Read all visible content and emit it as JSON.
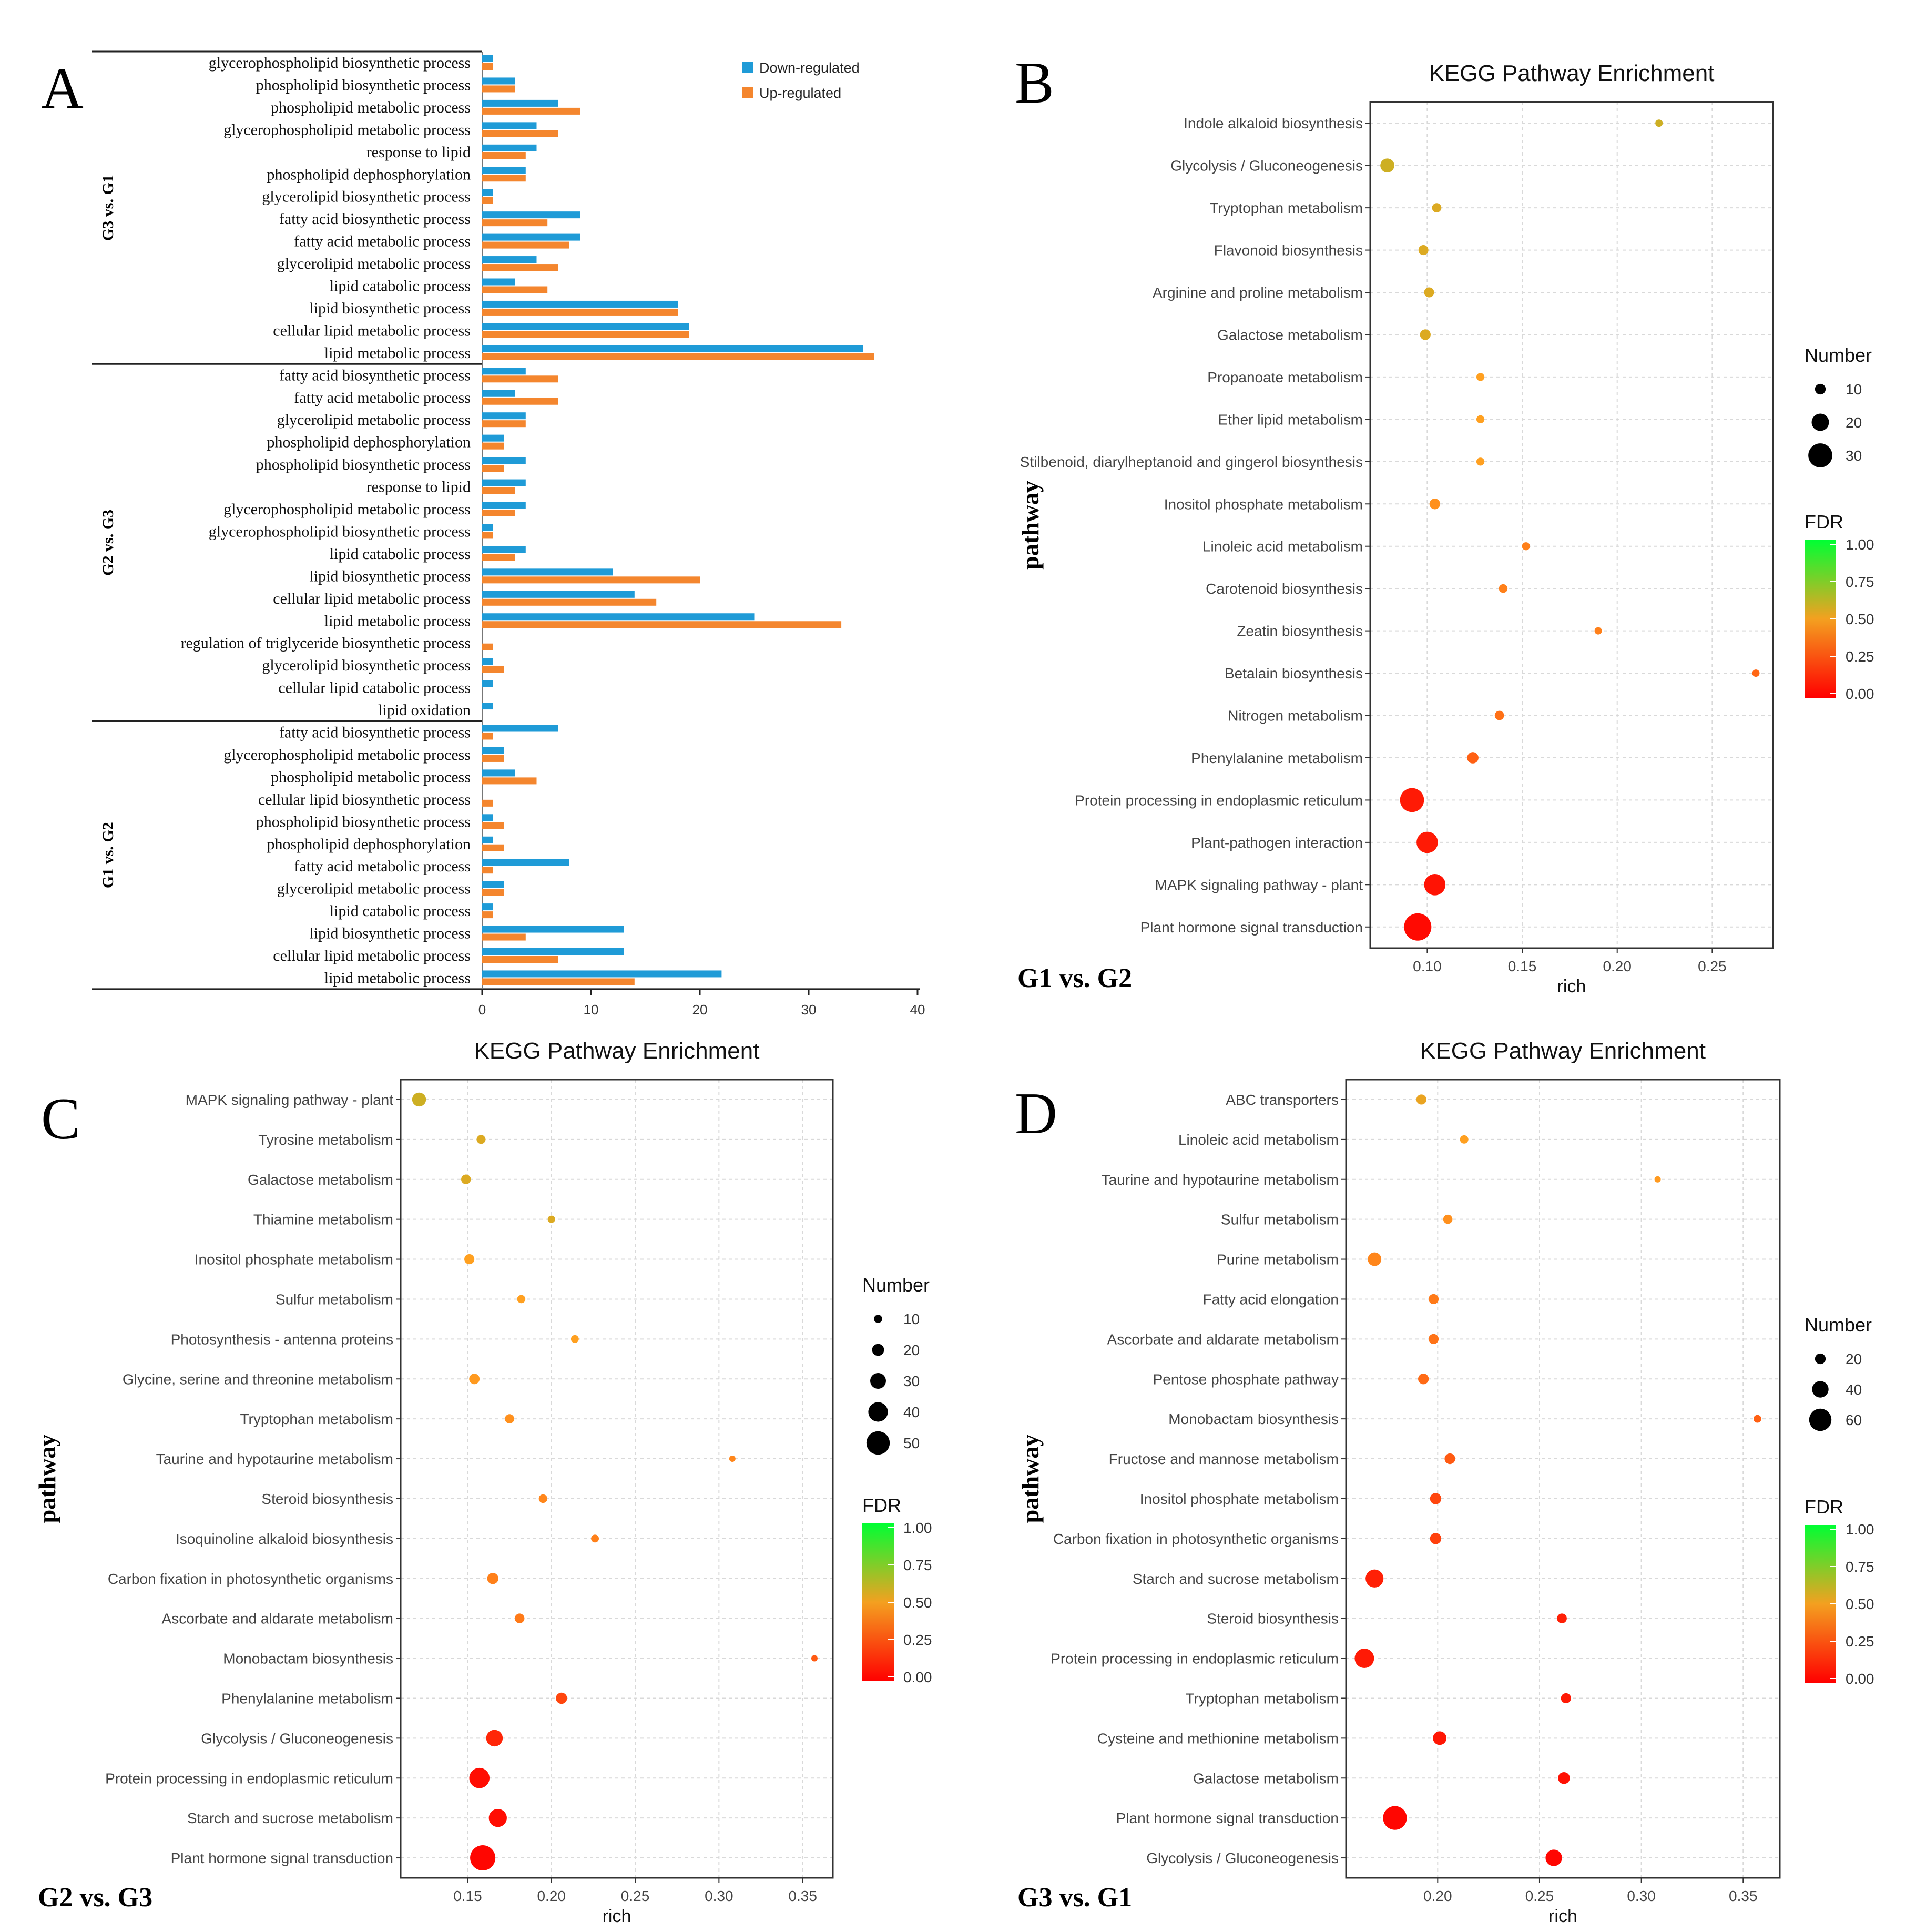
{
  "figure": {
    "panel_letters": [
      "A",
      "B",
      "C",
      "D"
    ],
    "comparison_labels": {
      "B": "G1 vs. G2",
      "C": "G2 vs. G3",
      "D": "G3 vs. G1"
    }
  },
  "colors": {
    "down": "#1f9bd7",
    "up": "#f4862e",
    "fdr_high": "#00ff33",
    "fdr_mid": "#f4a020",
    "fdr_low": "#ff0000",
    "grid": "#d9d9d9"
  },
  "chart_data": [
    {
      "id": "A",
      "type": "bar",
      "orientation": "horizontal",
      "legend": [
        "Down-regulated",
        "Up-regulated"
      ],
      "legend_position": "top-right",
      "xlim": [
        0,
        40
      ],
      "xticks": [
        0,
        10,
        20,
        30,
        40
      ],
      "groups": [
        {
          "name": "G3 vs. G1",
          "categories": [
            "glycerophospholipid biosynthetic process",
            "phospholipid biosynthetic process",
            "phospholipid metabolic process",
            "glycerophospholipid metabolic process",
            "response to lipid",
            "phospholipid dephosphorylation",
            "glycerolipid biosynthetic process",
            "fatty acid biosynthetic process",
            "fatty acid metabolic process",
            "glycerolipid metabolic process",
            "lipid catabolic process",
            "lipid biosynthetic process",
            "cellular lipid metabolic process",
            "lipid metabolic process"
          ],
          "series": [
            {
              "name": "Down-regulated",
              "values": [
                1,
                3,
                7,
                5,
                5,
                4,
                1,
                9,
                9,
                5,
                3,
                18,
                19,
                35
              ]
            },
            {
              "name": "Up-regulated",
              "values": [
                1,
                3,
                9,
                7,
                4,
                4,
                1,
                6,
                8,
                7,
                6,
                18,
                19,
                36
              ]
            }
          ]
        },
        {
          "name": "G2 vs. G3",
          "categories": [
            "fatty acid biosynthetic process",
            "fatty acid metabolic process",
            "glycerolipid metabolic process",
            "phospholipid dephosphorylation",
            "phospholipid biosynthetic process",
            "response to lipid",
            "glycerophospholipid metabolic process",
            "glycerophospholipid biosynthetic process",
            "lipid catabolic process",
            "lipid biosynthetic process",
            "cellular lipid metabolic process",
            "lipid metabolic process",
            "regulation of triglyceride biosynthetic process",
            "glycerolipid biosynthetic process",
            "cellular lipid catabolic process",
            "lipid oxidation"
          ],
          "series": [
            {
              "name": "Down-regulated",
              "values": [
                4,
                3,
                4,
                2,
                4,
                4,
                4,
                1,
                4,
                12,
                14,
                25,
                0,
                1,
                1,
                1
              ]
            },
            {
              "name": "Up-regulated",
              "values": [
                7,
                7,
                4,
                2,
                2,
                3,
                3,
                1,
                3,
                20,
                16,
                33,
                1,
                2,
                0,
                0
              ]
            }
          ]
        },
        {
          "name": "G1 vs. G2",
          "categories": [
            "fatty acid biosynthetic process",
            "glycerophospholipid metabolic process",
            "phospholipid metabolic process",
            "cellular lipid biosynthetic process",
            "phospholipid biosynthetic process",
            "phospholipid dephosphorylation",
            "fatty acid metabolic process",
            "glycerolipid metabolic process",
            "lipid catabolic process",
            "lipid biosynthetic process",
            "cellular lipid metabolic process",
            "lipid metabolic process"
          ],
          "series": [
            {
              "name": "Down-regulated",
              "values": [
                7,
                2,
                3,
                0,
                1,
                1,
                8,
                2,
                1,
                13,
                13,
                22
              ]
            },
            {
              "name": "Up-regulated",
              "values": [
                1,
                2,
                5,
                1,
                2,
                2,
                1,
                2,
                1,
                4,
                7,
                14
              ]
            }
          ]
        }
      ]
    },
    {
      "id": "B",
      "type": "scatter",
      "title": "KEGG Pathway Enrichment",
      "xlabel": "rich",
      "ylabel": "pathway",
      "xlim": [
        0.07,
        0.282
      ],
      "xticks": [
        "0.10",
        "0.15",
        "0.20",
        "0.25"
      ],
      "legend_number_title": "Number",
      "legend_number_values": [
        10,
        20,
        30
      ],
      "legend_fdr_title": "FDR",
      "legend_fdr_ticks": [
        "1.00",
        "0.75",
        "0.50",
        "0.25",
        "0.00"
      ],
      "size_scale": [
        5,
        35
      ],
      "points": [
        {
          "pathway": "Indole alkaloid biosynthesis",
          "rich": 0.222,
          "number": 2,
          "fdr": 0.58
        },
        {
          "pathway": "Glycolysis / Gluconeogenesis",
          "rich": 0.079,
          "number": 15,
          "fdr": 0.58
        },
        {
          "pathway": "Tryptophan metabolism",
          "rich": 0.105,
          "number": 8,
          "fdr": 0.55
        },
        {
          "pathway": "Flavonoid biosynthesis",
          "rich": 0.098,
          "number": 9,
          "fdr": 0.55
        },
        {
          "pathway": "Arginine and proline metabolism",
          "rich": 0.101,
          "number": 9,
          "fdr": 0.55
        },
        {
          "pathway": "Galactose metabolism",
          "rich": 0.099,
          "number": 10,
          "fdr": 0.55
        },
        {
          "pathway": "Propanoate metabolism",
          "rich": 0.128,
          "number": 6,
          "fdr": 0.5
        },
        {
          "pathway": "Ether lipid metabolism",
          "rich": 0.128,
          "number": 6,
          "fdr": 0.5
        },
        {
          "pathway": "Stilbenoid, diarylheptanoid and gingerol biosynthesis",
          "rich": 0.128,
          "number": 6,
          "fdr": 0.5
        },
        {
          "pathway": "Inositol phosphate metabolism",
          "rich": 0.104,
          "number": 10,
          "fdr": 0.45
        },
        {
          "pathway": "Linoleic acid metabolism",
          "rich": 0.152,
          "number": 6,
          "fdr": 0.4
        },
        {
          "pathway": "Carotenoid biosynthesis",
          "rich": 0.14,
          "number": 7,
          "fdr": 0.4
        },
        {
          "pathway": "Zeatin biosynthesis",
          "rich": 0.19,
          "number": 5,
          "fdr": 0.4
        },
        {
          "pathway": "Betalain biosynthesis",
          "rich": 0.273,
          "number": 4,
          "fdr": 0.32
        },
        {
          "pathway": "Nitrogen metabolism",
          "rich": 0.138,
          "number": 8,
          "fdr": 0.35
        },
        {
          "pathway": "Phenylalanine metabolism",
          "rich": 0.124,
          "number": 11,
          "fdr": 0.3
        },
        {
          "pathway": "Protein processing in endoplasmic reticulum",
          "rich": 0.092,
          "number": 30,
          "fdr": 0.08
        },
        {
          "pathway": "Plant-pathogen interaction",
          "rich": 0.1,
          "number": 26,
          "fdr": 0.08
        },
        {
          "pathway": "MAPK signaling pathway - plant",
          "rich": 0.104,
          "number": 26,
          "fdr": 0.06
        },
        {
          "pathway": "Plant hormone signal transduction",
          "rich": 0.095,
          "number": 35,
          "fdr": 0.03
        }
      ]
    },
    {
      "id": "C",
      "type": "scatter",
      "title": "KEGG Pathway Enrichment",
      "xlabel": "rich",
      "ylabel": "pathway",
      "xlim": [
        0.11,
        0.368
      ],
      "xticks": [
        "0.15",
        "0.20",
        "0.25",
        "0.30",
        "0.35"
      ],
      "legend_number_title": "Number",
      "legend_number_values": [
        10,
        20,
        30,
        40,
        50
      ],
      "legend_fdr_title": "FDR",
      "legend_fdr_ticks": [
        "1.00",
        "0.75",
        "0.50",
        "0.25",
        "0.00"
      ],
      "size_scale": [
        5,
        55
      ],
      "points": [
        {
          "pathway": "MAPK signaling pathway - plant",
          "rich": 0.121,
          "number": 25,
          "fdr": 0.58
        },
        {
          "pathway": "Tyrosine metabolism",
          "rich": 0.158,
          "number": 12,
          "fdr": 0.55
        },
        {
          "pathway": "Galactose metabolism",
          "rich": 0.149,
          "number": 14,
          "fdr": 0.55
        },
        {
          "pathway": "Thiamine metabolism",
          "rich": 0.2,
          "number": 8,
          "fdr": 0.55
        },
        {
          "pathway": "Inositol phosphate metabolism",
          "rich": 0.151,
          "number": 15,
          "fdr": 0.5
        },
        {
          "pathway": "Sulfur metabolism",
          "rich": 0.182,
          "number": 10,
          "fdr": 0.5
        },
        {
          "pathway": "Photosynthesis - antenna proteins",
          "rich": 0.214,
          "number": 9,
          "fdr": 0.5
        },
        {
          "pathway": "Glycine, serine and threonine metabolism",
          "rich": 0.154,
          "number": 16,
          "fdr": 0.48
        },
        {
          "pathway": "Tryptophan metabolism",
          "rich": 0.175,
          "number": 13,
          "fdr": 0.45
        },
        {
          "pathway": "Taurine and hypotaurine metabolism",
          "rich": 0.308,
          "number": 4,
          "fdr": 0.42
        },
        {
          "pathway": "Steroid biosynthesis",
          "rich": 0.195,
          "number": 11,
          "fdr": 0.42
        },
        {
          "pathway": "Isoquinoline alkaloid biosynthesis",
          "rich": 0.226,
          "number": 9,
          "fdr": 0.4
        },
        {
          "pathway": "Carbon fixation in photosynthetic organisms",
          "rich": 0.165,
          "number": 18,
          "fdr": 0.4
        },
        {
          "pathway": "Ascorbate and aldarate metabolism",
          "rich": 0.181,
          "number": 14,
          "fdr": 0.38
        },
        {
          "pathway": "Monobactam biosynthesis",
          "rich": 0.357,
          "number": 5,
          "fdr": 0.28
        },
        {
          "pathway": "Phenylalanine metabolism",
          "rich": 0.206,
          "number": 18,
          "fdr": 0.22
        },
        {
          "pathway": "Glycolysis / Gluconeogenesis",
          "rich": 0.166,
          "number": 32,
          "fdr": 0.12
        },
        {
          "pathway": "Protein processing in endoplasmic reticulum",
          "rich": 0.157,
          "number": 42,
          "fdr": 0.04
        },
        {
          "pathway": "Starch and sucrose metabolism",
          "rich": 0.168,
          "number": 36,
          "fdr": 0.04
        },
        {
          "pathway": "Plant hormone signal transduction",
          "rich": 0.159,
          "number": 55,
          "fdr": 0.02
        }
      ]
    },
    {
      "id": "D",
      "type": "scatter",
      "title": "KEGG Pathway Enrichment",
      "xlabel": "rich",
      "ylabel": "pathway",
      "xlim": [
        0.155,
        0.368
      ],
      "xticks": [
        "0.20",
        "0.25",
        "0.30",
        "0.35"
      ],
      "legend_number_title": "Number",
      "legend_number_values": [
        20,
        40,
        60
      ],
      "legend_fdr_title": "FDR",
      "legend_fdr_ticks": [
        "1.00",
        "0.75",
        "0.50",
        "0.25",
        "0.00"
      ],
      "size_scale": [
        5,
        70
      ],
      "points": [
        {
          "pathway": "ABC transporters",
          "rich": 0.192,
          "number": 18,
          "fdr": 0.52
        },
        {
          "pathway": "Linoleic acid metabolism",
          "rich": 0.213,
          "number": 12,
          "fdr": 0.5
        },
        {
          "pathway": "Taurine and hypotaurine metabolism",
          "rich": 0.308,
          "number": 5,
          "fdr": 0.48
        },
        {
          "pathway": "Sulfur metabolism",
          "rich": 0.205,
          "number": 15,
          "fdr": 0.45
        },
        {
          "pathway": "Purine metabolism",
          "rich": 0.169,
          "number": 30,
          "fdr": 0.42
        },
        {
          "pathway": "Fatty acid elongation",
          "rich": 0.198,
          "number": 18,
          "fdr": 0.38
        },
        {
          "pathway": "Ascorbate and aldarate metabolism",
          "rich": 0.198,
          "number": 18,
          "fdr": 0.36
        },
        {
          "pathway": "Pentose phosphate pathway",
          "rich": 0.193,
          "number": 20,
          "fdr": 0.33
        },
        {
          "pathway": "Monobactam biosynthesis",
          "rich": 0.357,
          "number": 10,
          "fdr": 0.3
        },
        {
          "pathway": "Fructose and mannose metabolism",
          "rich": 0.206,
          "number": 20,
          "fdr": 0.28
        },
        {
          "pathway": "Inositol phosphate metabolism",
          "rich": 0.199,
          "number": 22,
          "fdr": 0.22
        },
        {
          "pathway": "Carbon fixation in photosynthetic organisms",
          "rich": 0.199,
          "number": 22,
          "fdr": 0.2
        },
        {
          "pathway": "Starch and sucrose metabolism",
          "rich": 0.169,
          "number": 45,
          "fdr": 0.1
        },
        {
          "pathway": "Steroid biosynthesis",
          "rich": 0.261,
          "number": 17,
          "fdr": 0.1
        },
        {
          "pathway": "Protein processing in endoplasmic reticulum",
          "rich": 0.164,
          "number": 50,
          "fdr": 0.08
        },
        {
          "pathway": "Tryptophan metabolism",
          "rich": 0.263,
          "number": 18,
          "fdr": 0.08
        },
        {
          "pathway": "Cysteine and methionine metabolism",
          "rich": 0.201,
          "number": 30,
          "fdr": 0.07
        },
        {
          "pathway": "Galactose metabolism",
          "rich": 0.262,
          "number": 24,
          "fdr": 0.05
        },
        {
          "pathway": "Plant hormone signal transduction",
          "rich": 0.179,
          "number": 65,
          "fdr": 0.02
        },
        {
          "pathway": "Glycolysis / Gluconeogenesis",
          "rich": 0.257,
          "number": 40,
          "fdr": 0.02
        }
      ]
    }
  ]
}
